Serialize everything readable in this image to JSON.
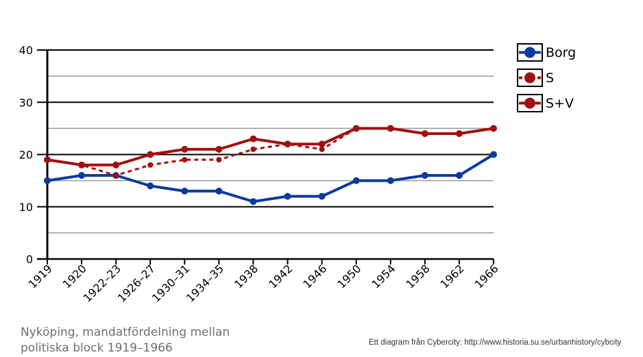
{
  "chart_data": {
    "type": "line",
    "categories": [
      "1919",
      "1920",
      "1922–23",
      "1926–27",
      "1930–31",
      "1934–35",
      "1938",
      "1942",
      "1946",
      "1950",
      "1954",
      "1958",
      "1962",
      "1966"
    ],
    "series": [
      {
        "name": "Borg",
        "values": [
          15,
          16,
          16,
          14,
          13,
          13,
          11,
          12,
          12,
          15,
          15,
          16,
          16,
          20
        ],
        "color": "#0a3a9e",
        "style": "solid"
      },
      {
        "name": "S",
        "values": [
          19,
          18,
          16,
          18,
          19,
          19,
          21,
          22,
          21,
          25,
          25,
          24,
          24,
          25
        ],
        "color": "#a30f0f",
        "style": "dashed"
      },
      {
        "name": "S+V",
        "values": [
          19,
          18,
          18,
          20,
          21,
          21,
          23,
          22,
          22,
          25,
          25,
          24,
          24,
          25
        ],
        "color": "#a30f0f",
        "style": "solid"
      }
    ],
    "yticks": [
      "0",
      "10",
      "20",
      "30",
      "40"
    ],
    "ylim": [
      0,
      40
    ],
    "grid": true,
    "legend_position": "top-right"
  },
  "caption": {
    "line1": "Nyköping, mandatfördelning mellan",
    "line2": "politiska block 1919–1966"
  },
  "credit": "Ett diagram från Cybercity: http://www.historia.su.se/urbanhistory/cybcity"
}
